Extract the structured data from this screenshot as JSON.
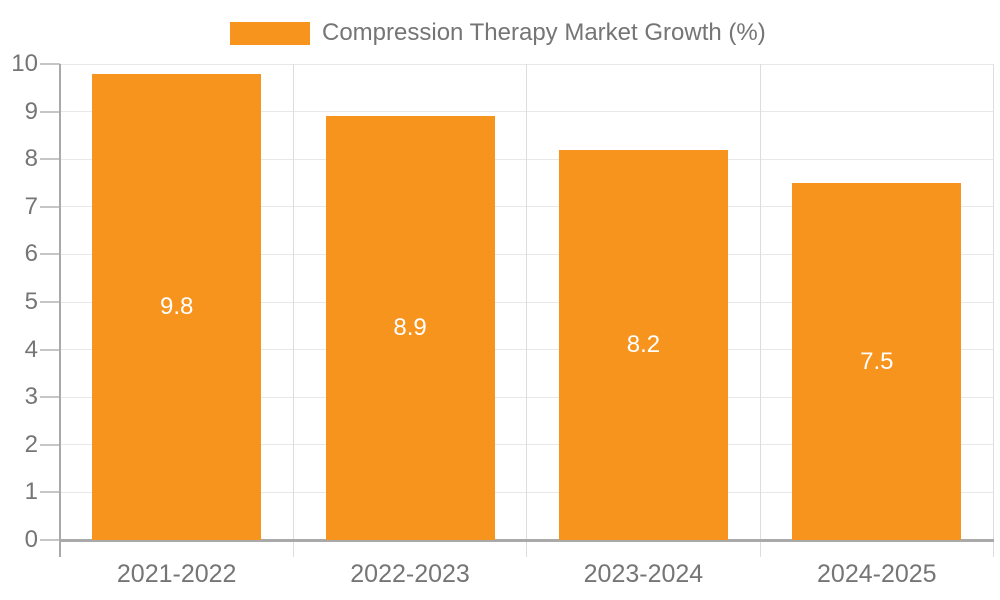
{
  "chart_data": {
    "type": "bar",
    "title": "",
    "legend_position": "top",
    "legend_entries": [
      "Compression Therapy Market Growth (%)"
    ],
    "categories": [
      "2021-2022",
      "2022-2023",
      "2023-2024",
      "2024-2025"
    ],
    "series": [
      {
        "name": "Compression Therapy Market Growth (%)",
        "values": [
          9.8,
          8.9,
          8.2,
          7.5
        ],
        "data_labels": [
          "9.8",
          "8.9",
          "8.2",
          "7.5"
        ]
      }
    ],
    "xlabel": "",
    "ylabel": "",
    "ylim": [
      0,
      10
    ],
    "yticks": [
      0,
      1,
      2,
      3,
      4,
      5,
      6,
      7,
      8,
      9,
      10
    ],
    "grid": "horizontal gridlines at each integer; vertical gridlines at category boundaries",
    "data_label_position": "center of bar",
    "colors": {
      "bar": "#F7941E",
      "bar_label_text": "#FFFFFF",
      "axis_text": "#757575",
      "axis_line": "#A9A9A9",
      "grid_horizontal": "#E8E8E8",
      "grid_vertical": "#DDDDDD",
      "tick": "#C6C6C6",
      "background": "#FFFFFF"
    }
  }
}
